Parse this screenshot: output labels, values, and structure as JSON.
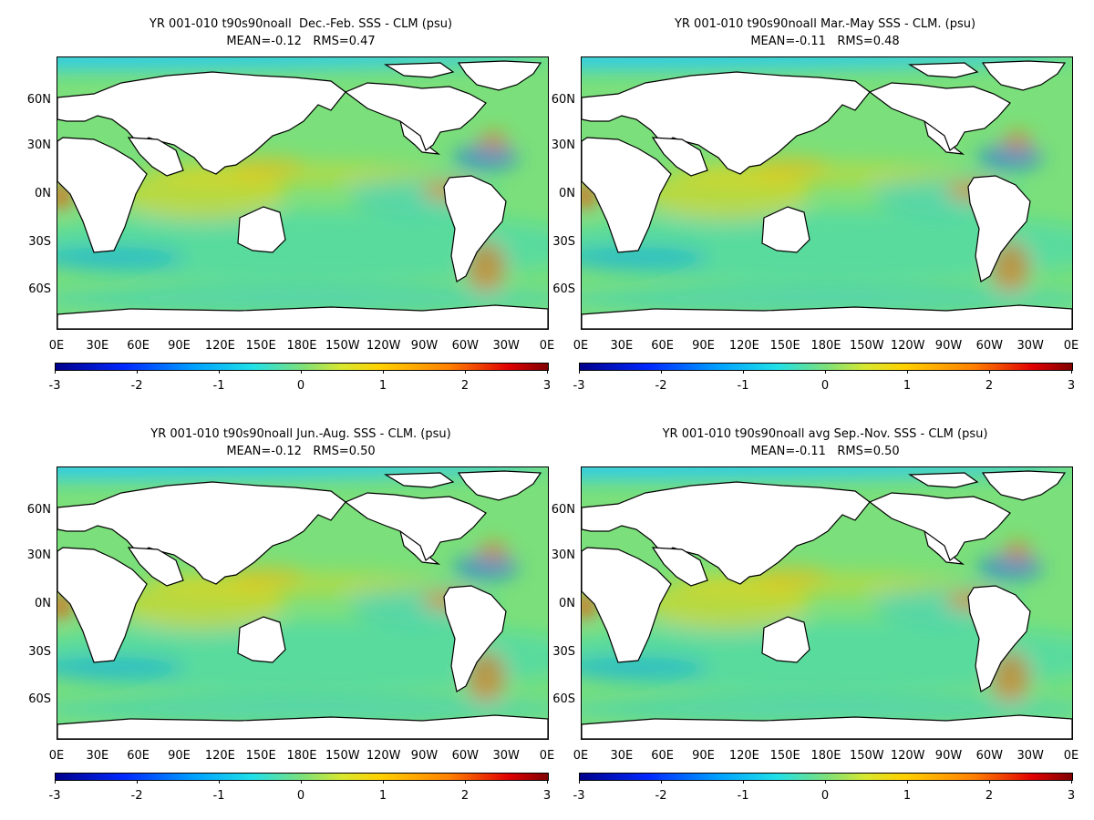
{
  "panels": [
    {
      "title1": "YR 001-010 t90s90noall  Dec.-Feb. SSS - CLM (psu)",
      "title2": "MEAN=-0.12   RMS=0.47"
    },
    {
      "title1": "YR 001-010 t90s90noall Mar.-May SSS - CLM. (psu)",
      "title2": "MEAN=-0.11   RMS=0.48"
    },
    {
      "title1": "YR 001-010 t90s90noall Jun.-Aug. SSS - CLM. (psu)",
      "title2": "MEAN=-0.12   RMS=0.50"
    },
    {
      "title1": "YR 001-010 t90s90noall avg Sep.-Nov. SSS - CLM (psu)",
      "title2": "MEAN=-0.11   RMS=0.50"
    }
  ],
  "lat_labels": [
    "60N",
    "30N",
    "0N",
    "30S",
    "60S"
  ],
  "lon_labels": [
    "0E",
    "30E",
    "60E",
    "90E",
    "120E",
    "150E",
    "180E",
    "150W",
    "120W",
    "90W",
    "60W",
    "30W",
    "0E"
  ],
  "colorbar": {
    "labels": [
      "-3",
      "-2",
      "-1",
      "0",
      "1",
      "2",
      "3"
    ],
    "min": -3,
    "max": 3
  },
  "colors": {
    "ocean_base": "#7be07b",
    "land": "#ffffff"
  }
}
